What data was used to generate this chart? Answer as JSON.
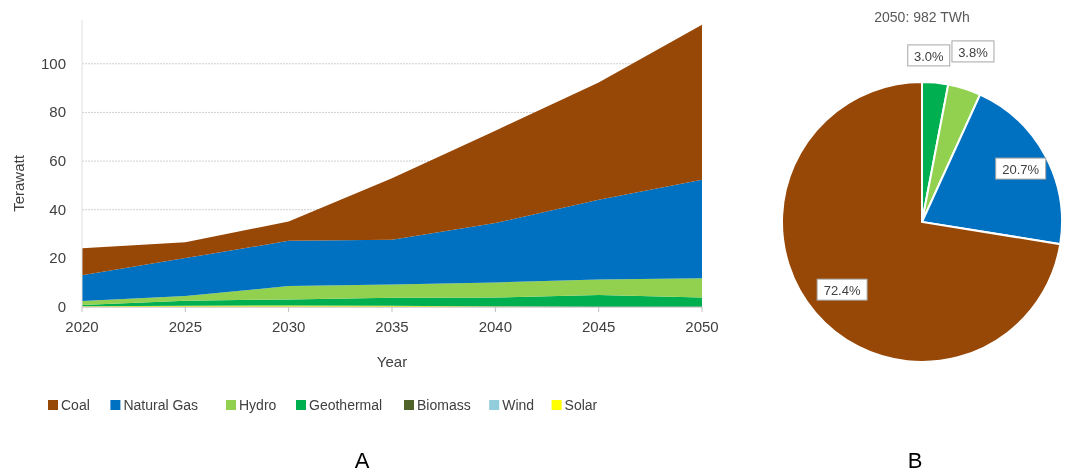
{
  "chart_data": [
    {
      "type": "area",
      "stacked": true,
      "xlabel": "Year",
      "ylabel": "Terawatt",
      "x": [
        2020,
        2025,
        2030,
        2035,
        2040,
        2045,
        2050
      ],
      "xlim": [
        2020,
        2050
      ],
      "xticks": [
        2020,
        2025,
        2030,
        2035,
        2040,
        2045,
        2050
      ],
      "ylim": [
        0,
        118
      ],
      "yticks": [
        0,
        20,
        40,
        60,
        80,
        100
      ],
      "grid": "y",
      "legend": "bottom",
      "annotations": [
        "A"
      ],
      "series": [
        {
          "name": "Solar",
          "color": "#ffff00",
          "values": [
            0.3,
            0.5,
            0.6,
            0.5,
            0.2,
            0,
            0
          ]
        },
        {
          "name": "Wind",
          "color": "#92cddc",
          "values": [
            null,
            null,
            null,
            null,
            null,
            null,
            null
          ]
        },
        {
          "name": "Biomass",
          "color": "#4f6228",
          "values": [
            null,
            null,
            null,
            null,
            null,
            null,
            null
          ]
        },
        {
          "name": "Geothermal",
          "color": "#00b050",
          "values": [
            0.5,
            2.1,
            2.5,
            3.3,
            3.7,
            4.9,
            3.9
          ]
        },
        {
          "name": "Hydro",
          "color": "#92d050",
          "values": [
            1.7,
            1.9,
            5.5,
            5.5,
            6.2,
            6.4,
            7.9
          ]
        },
        {
          "name": "Natural Gas",
          "color": "#0070c0",
          "values": [
            10.6,
            15.6,
            18.6,
            18.4,
            24.4,
            32.8,
            40.5
          ]
        },
        {
          "name": "Coal",
          "color": "#974706",
          "values": [
            11.1,
            6.5,
            8,
            25.2,
            38,
            48.2,
            63.7
          ]
        }
      ]
    },
    {
      "type": "pie",
      "title": "2050: 982 TWh",
      "categories": [
        null,
        null,
        null,
        null
      ],
      "values": [
        3.0,
        3.8,
        20.7,
        72.4
      ],
      "colors": [
        "#00b050",
        "#92d050",
        "#0070c0",
        "#974706"
      ],
      "value_labels": [
        "3.0%",
        "3.8%",
        "20.7%",
        "72.4%"
      ],
      "annotations": [
        "B"
      ]
    }
  ]
}
